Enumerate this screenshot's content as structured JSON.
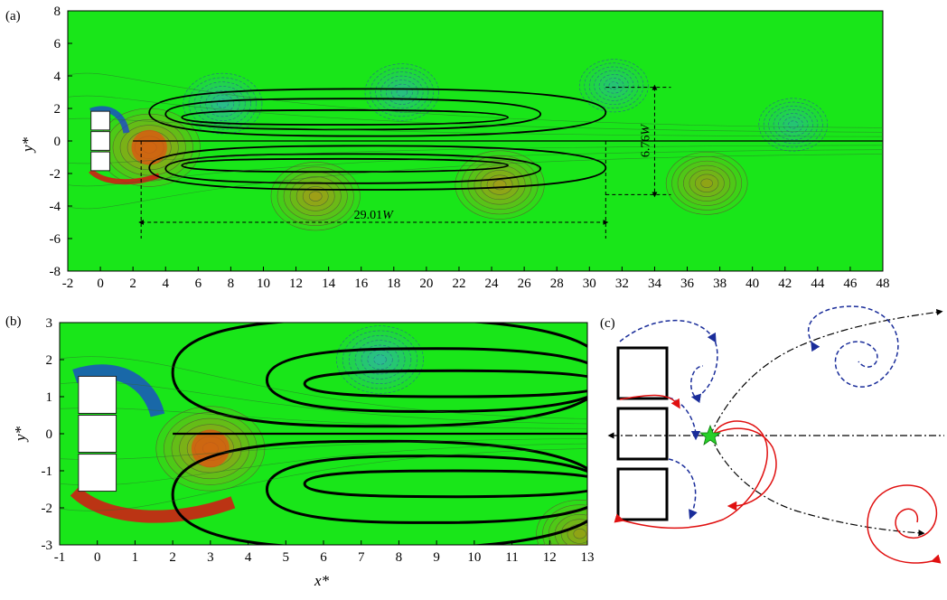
{
  "colors": {
    "background_field": "#19e619",
    "positive_vortex": "#e87a18",
    "negative_vortex": "#3aa0e8",
    "streamline": "#000000",
    "dashed_blue_streamline": "#1a2d9a",
    "red_streamline": "#e01010",
    "saddle_star": "#28d028"
  },
  "icons": [
    "square-cylinder-icon",
    "saddle-point-star-icon",
    "arrowhead-icon"
  ],
  "chart_data": [
    {
      "panel": "(a)",
      "type": "contour",
      "title": "",
      "xlabel": "",
      "ylabel": "y*",
      "xlim": [
        -2,
        48
      ],
      "ylim": [
        -8,
        8
      ],
      "xticks": [
        "-2",
        "0",
        "2",
        "4",
        "6",
        "8",
        "10",
        "12",
        "14",
        "16",
        "18",
        "20",
        "22",
        "24",
        "26",
        "28",
        "30",
        "32",
        "34",
        "36",
        "38",
        "40",
        "42",
        "44",
        "46",
        "48"
      ],
      "yticks": [
        "-8",
        "-6",
        "-4",
        "-2",
        "0",
        "2",
        "4",
        "6",
        "8"
      ],
      "cylinders": [
        {
          "x": 0,
          "y": 1.25
        },
        {
          "x": 0,
          "y": 0
        },
        {
          "x": 0,
          "y": -1.25
        }
      ],
      "vortices": [
        {
          "x": 3,
          "y": -0.4,
          "sign": "positive",
          "strength": 1.0
        },
        {
          "x": 7.5,
          "y": 2.3,
          "sign": "negative",
          "strength": 0.55
        },
        {
          "x": 13.2,
          "y": -3.4,
          "sign": "positive",
          "strength": 0.75
        },
        {
          "x": 18.5,
          "y": 3.0,
          "sign": "negative",
          "strength": 0.45
        },
        {
          "x": 24.5,
          "y": -2.7,
          "sign": "positive",
          "strength": 0.75
        },
        {
          "x": 31.5,
          "y": 3.4,
          "sign": "negative",
          "strength": 0.35
        },
        {
          "x": 37.2,
          "y": -2.6,
          "sign": "positive",
          "strength": 0.6
        },
        {
          "x": 42.5,
          "y": 1.0,
          "sign": "negative",
          "strength": 0.35
        }
      ],
      "annotations": [
        {
          "text": "29.01W",
          "from": [
            2.5,
            -5
          ],
          "to": [
            31,
            -5
          ],
          "label_number": "29.01",
          "label_italic": "W"
        },
        {
          "text": "6.76W",
          "from": [
            34,
            3.3
          ],
          "to": [
            34,
            -3.3
          ],
          "label_number": "6.76",
          "label_italic": "W"
        }
      ]
    },
    {
      "panel": "(b)",
      "type": "contour",
      "title": "",
      "xlabel": "x*",
      "ylabel": "y*",
      "xlim": [
        -1,
        13
      ],
      "ylim": [
        -3,
        3
      ],
      "xticks": [
        "-1",
        "0",
        "1",
        "2",
        "3",
        "4",
        "5",
        "6",
        "7",
        "8",
        "9",
        "10",
        "11",
        "12",
        "13"
      ],
      "yticks": [
        "-3",
        "-2",
        "-1",
        "0",
        "1",
        "2",
        "3"
      ],
      "cylinders": [
        {
          "x": 0,
          "y": 1.05
        },
        {
          "x": 0,
          "y": 0
        },
        {
          "x": 0,
          "y": -1.05
        }
      ],
      "vortices": [
        {
          "x": 3,
          "y": -0.4,
          "sign": "positive",
          "strength": 1.0
        },
        {
          "x": 7.5,
          "y": 2.0,
          "sign": "negative",
          "strength": 0.6
        },
        {
          "x": 12.8,
          "y": -2.7,
          "sign": "positive",
          "strength": 0.6
        }
      ]
    },
    {
      "panel": "(c)",
      "type": "schematic",
      "title": "",
      "elements": [
        "three square cylinders",
        "saddle point",
        "centreline",
        "dashed spiral streamlines",
        "solid spiral streamlines"
      ]
    }
  ]
}
